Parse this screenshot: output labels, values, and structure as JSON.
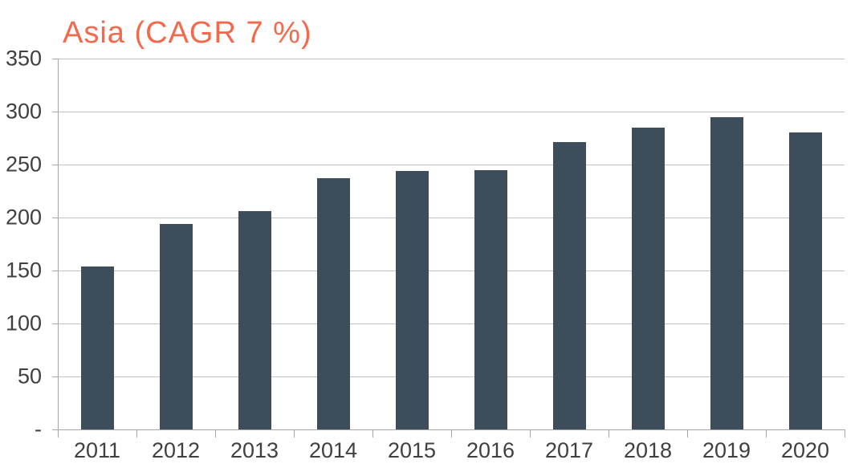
{
  "chart_data": {
    "type": "bar",
    "title": "Asia (CAGR 7 %)",
    "categories": [
      "2011",
      "2012",
      "2013",
      "2014",
      "2015",
      "2016",
      "2017",
      "2018",
      "2019",
      "2020"
    ],
    "values": [
      154,
      194,
      206,
      237,
      244,
      245,
      271,
      285,
      295,
      280
    ],
    "xlabel": "",
    "ylabel": "",
    "ylim": [
      0,
      350
    ],
    "ytick_interval": 50,
    "ytick_labels": [
      "-",
      "50",
      "100",
      "150",
      "200",
      "250",
      "300",
      "350"
    ],
    "zero_tick_label": "-",
    "grid": true,
    "legend_position": "none",
    "colors": {
      "bar_fill": "#3e4d5b",
      "title": "#f4694c",
      "gridline": "#c2c2c2",
      "axis_line": "#a6a6a6",
      "tick_label": "#404040",
      "background": "#ffffff"
    }
  }
}
